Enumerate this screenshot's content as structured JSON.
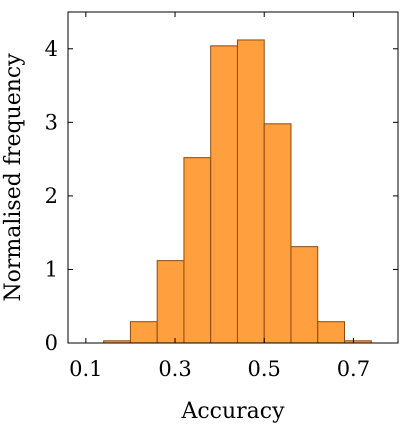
{
  "chart_data": {
    "type": "bar",
    "title": "",
    "xlabel": "Accuracy",
    "ylabel": "Normalised frequency",
    "xlim": [
      0.06,
      0.8
    ],
    "ylim": [
      0,
      4.5
    ],
    "x_ticks": [
      0.1,
      0.3,
      0.5,
      0.7
    ],
    "x_tick_labels": [
      "0.1",
      "0.3",
      "0.5",
      "0.7"
    ],
    "y_ticks": [
      0,
      1,
      2,
      3,
      4
    ],
    "y_tick_labels": [
      "0",
      "1",
      "2",
      "3",
      "4"
    ],
    "bin_edges": [
      0.14,
      0.2,
      0.26,
      0.32,
      0.38,
      0.44,
      0.5,
      0.56,
      0.62,
      0.68,
      0.74
    ],
    "values": [
      0.03,
      0.29,
      1.12,
      2.52,
      4.04,
      4.12,
      2.98,
      1.31,
      0.29,
      0.03
    ],
    "grid": false,
    "bar_color": "#ff9f3d",
    "bar_edge_color": "#8b4a12"
  }
}
